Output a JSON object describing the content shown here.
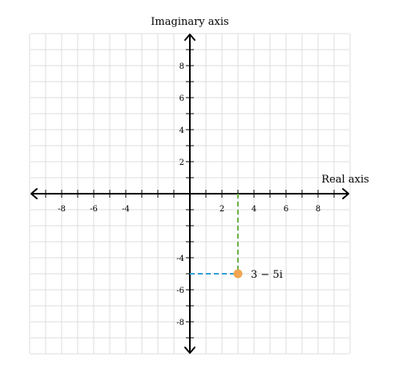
{
  "chart_data": {
    "type": "scatter",
    "xlabel": "Real axis",
    "ylabel": "Imaginary axis",
    "xlim": [
      -10,
      10
    ],
    "ylim": [
      -10,
      10
    ],
    "grid": true,
    "x_tick_labels": [
      "-8",
      "-6",
      "-4",
      "2",
      "4",
      "6",
      "8"
    ],
    "y_tick_labels": [
      "8",
      "6",
      "4",
      "2",
      "-4",
      "-6",
      "-8"
    ],
    "points": [
      {
        "x": 3,
        "y": -5,
        "label": "3 − 5i",
        "color": "#f0a650"
      }
    ],
    "guides": {
      "vertical_color": "#6ab04c",
      "horizontal_color": "#2e9fd8"
    }
  }
}
